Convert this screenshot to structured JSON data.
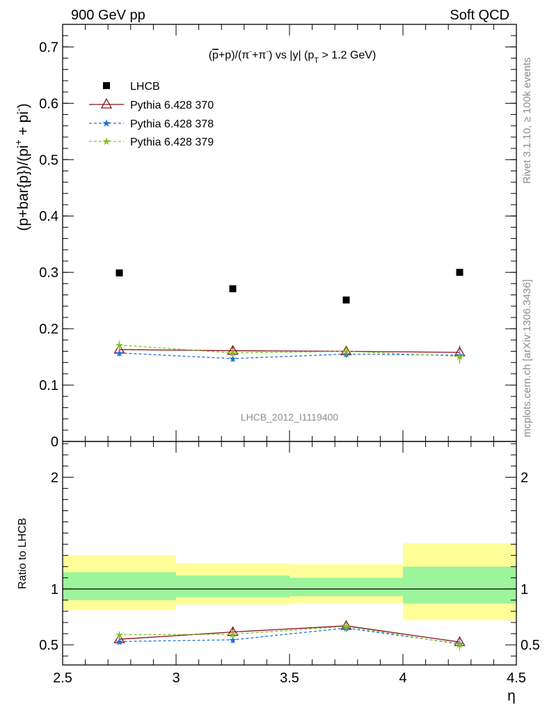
{
  "header": {
    "left": "900 GeV pp",
    "right": "Soft QCD"
  },
  "side_labels": {
    "rivet": "Rivet 3.1.10, ≥ 100k events",
    "mcplots": "mcplots.cern.ch [arXiv:1306.3436]"
  },
  "colors": {
    "data": "#000000",
    "p370": "#8b0f1a",
    "p378": "#1e6fd9",
    "p379": "#7fc21f",
    "band_inner": "#9cf59c",
    "band_outer": "#ffff99"
  },
  "chart_data": [
    {
      "type": "scatter",
      "panel": "main",
      "title": "(p̅+p)/(π⁻+π⁻) vs |y| (p_T > 1.2 GeV)",
      "title_parts": {
        "a": "(",
        "pbar": "p",
        "b": "+p)/(π",
        "c": "+π",
        "d": ") vs |y| (p",
        "sub": "T",
        "e": " > 1.2 GeV)"
      },
      "ylabel": "(p+bar{p})/(pi⁺ + pi⁻)",
      "ylabel_parts": {
        "a": "(p+bar{p})/(pi",
        "sup1": "+",
        "b": " + pi",
        "sup2": "-",
        "c": ")"
      },
      "xlabel": "",
      "watermark": "LHCB_2012_I1119400",
      "xlim": [
        2.5,
        4.5
      ],
      "ylim": [
        0,
        0.74
      ],
      "yticks": [
        "0",
        "0.1",
        "0.2",
        "0.3",
        "0.4",
        "0.5",
        "0.6",
        "0.7"
      ],
      "legend_position": "top-left",
      "x": [
        2.75,
        3.25,
        3.75,
        4.25
      ],
      "series": [
        {
          "name": "LHCB",
          "marker": "square",
          "values": [
            0.299,
            0.271,
            0.251,
            0.3
          ],
          "errors": [
            0,
            0,
            0,
            0
          ]
        },
        {
          "name": "Pythia 6.428 370",
          "marker": "triangle",
          "line": "solid",
          "values": [
            0.163,
            0.161,
            0.16,
            0.158
          ],
          "errors": [
            0.007,
            0.008,
            0.008,
            0.012
          ]
        },
        {
          "name": "Pythia 6.428 378",
          "marker": "star",
          "line": "dashed",
          "values": [
            0.157,
            0.147,
            0.155,
            0.153
          ],
          "errors": [
            0.006,
            0.006,
            0.007,
            0.009
          ]
        },
        {
          "name": "Pythia 6.428 379",
          "marker": "star",
          "line": "dashed",
          "values": [
            0.171,
            0.157,
            0.16,
            0.151
          ],
          "errors": [
            0.008,
            0.007,
            0.008,
            0.013
          ]
        }
      ]
    },
    {
      "type": "scatter",
      "panel": "ratio",
      "ylabel": "Ratio to LHCB",
      "xlabel": "η",
      "xlim": [
        2.5,
        4.5
      ],
      "ylim": [
        0.32,
        2.32
      ],
      "yticks": [
        "0.5",
        "1",
        "2"
      ],
      "xticks": [
        "2.5",
        "3",
        "3.5",
        "4",
        "4.5"
      ],
      "bins": [
        [
          2.5,
          3.0
        ],
        [
          3.0,
          3.5
        ],
        [
          3.5,
          4.0
        ],
        [
          4.0,
          4.5
        ]
      ],
      "band_inner": [
        [
          0.9,
          1.15
        ],
        [
          0.925,
          1.12
        ],
        [
          0.935,
          1.1
        ],
        [
          0.87,
          1.2
        ]
      ],
      "band_outer": [
        [
          0.81,
          1.3
        ],
        [
          0.86,
          1.23
        ],
        [
          0.875,
          1.22
        ],
        [
          0.72,
          1.41
        ]
      ],
      "reference": 1,
      "x": [
        2.75,
        3.25,
        3.75,
        4.25
      ],
      "series": [
        {
          "name": "Pythia 6.428 370",
          "marker": "triangle",
          "line": "solid",
          "values": [
            0.55,
            0.615,
            0.67,
            0.525
          ],
          "errors": [
            0.03,
            0.035,
            0.04,
            0.05
          ]
        },
        {
          "name": "Pythia 6.428 378",
          "marker": "star",
          "line": "dashed",
          "values": [
            0.53,
            0.545,
            0.65,
            0.51
          ],
          "errors": [
            0.025,
            0.03,
            0.035,
            0.04
          ]
        },
        {
          "name": "Pythia 6.428 379",
          "marker": "star",
          "line": "dashed",
          "values": [
            0.59,
            0.595,
            0.665,
            0.505
          ],
          "errors": [
            0.03,
            0.03,
            0.04,
            0.055
          ]
        }
      ]
    }
  ]
}
